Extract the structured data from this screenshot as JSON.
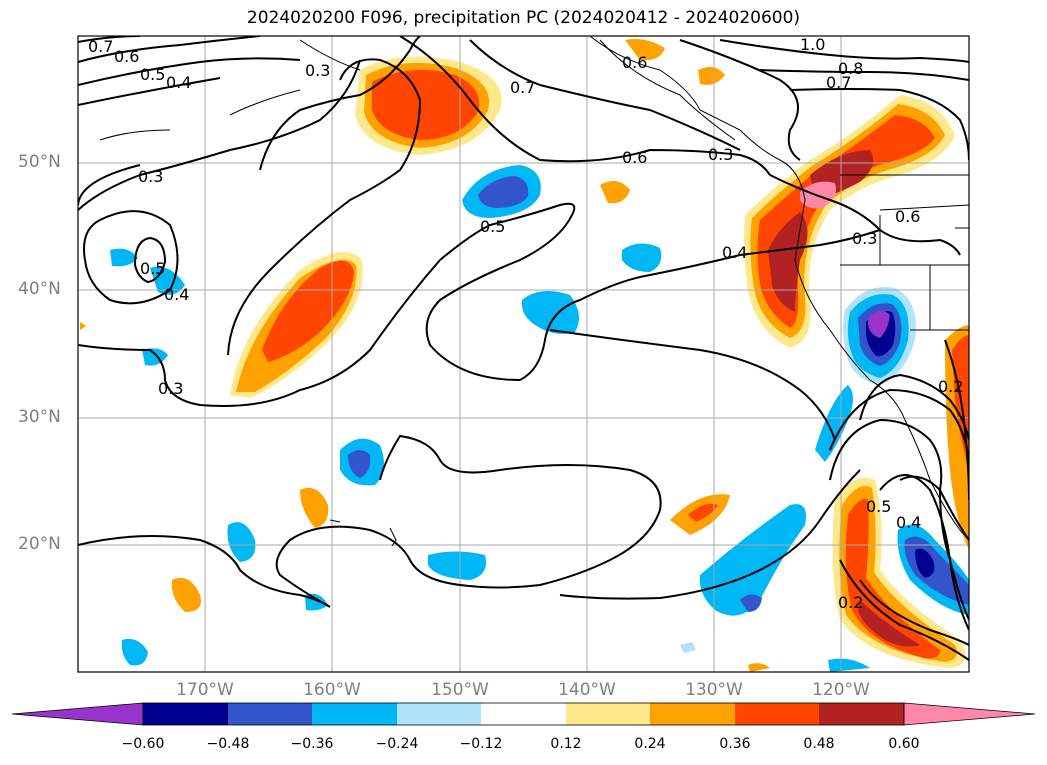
{
  "title": "2024020200 F096, precipitation PC (2024020412 - 2024020600)",
  "lat_labels": [
    "50°N",
    "40°N",
    "30°N",
    "20°N"
  ],
  "lon_labels": [
    "170°W",
    "160°W",
    "150°W",
    "140°W",
    "130°W",
    "120°W"
  ],
  "colorbar": {
    "ticks": [
      "−0.60",
      "−0.48",
      "−0.36",
      "−0.24",
      "−0.12",
      "0.12",
      "0.24",
      "0.36",
      "0.48",
      "0.60"
    ],
    "colors": [
      "#9933cc",
      "#000090",
      "#3355cc",
      "#00b7f5",
      "#aee3fa",
      "#ffffff",
      "#ffe88a",
      "#ffa200",
      "#ff4500",
      "#b22222",
      "#ff88aa"
    ]
  },
  "contour_labels": [
    "0.7",
    "0.6",
    "0.5",
    "0.4",
    "0.3",
    "0.3",
    "0.7",
    "0.6",
    "0.5",
    "0.3",
    "0.5",
    "0.4",
    "0.3",
    "1.0",
    "0.8",
    "0.7",
    "0.6",
    "0.4",
    "0.3",
    "0.5",
    "0.4",
    "0.2",
    "0.2",
    "0.6"
  ],
  "colors": {
    "contour": "#000000",
    "grid": "#aaaaaa",
    "coast": "#000000"
  }
}
